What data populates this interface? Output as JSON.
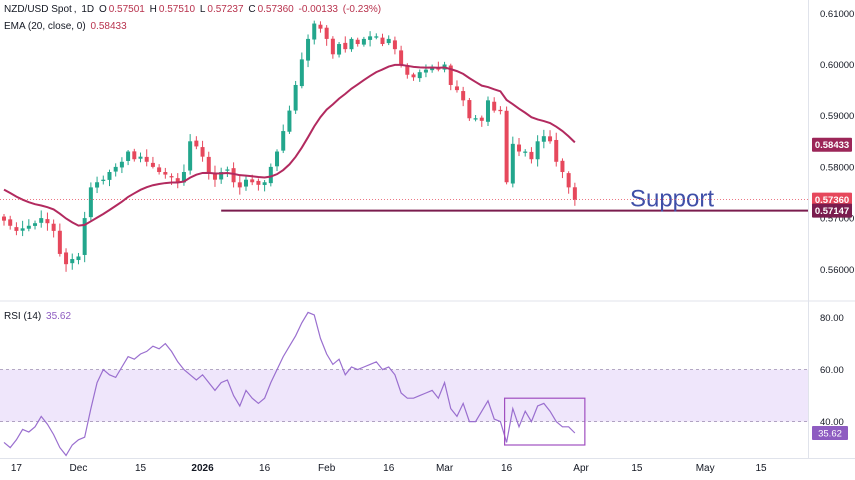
{
  "chart_data": {
    "type": "candlestick",
    "symbol": "NZD/USD Spot",
    "interval": "1D",
    "ohlc": {
      "open_label": "O",
      "open": "0.57501",
      "high_label": "H",
      "high": "0.57510",
      "low_label": "L",
      "low": "0.57237",
      "close_label": "C",
      "close": "0.57360",
      "change": "-0.00133",
      "change_pct": "(-0.23%)"
    },
    "ema": {
      "label": "EMA (20, close, 0)",
      "value": "0.58433",
      "color": "#b22a5f"
    },
    "rsi": {
      "label": "RSI (14)",
      "value": "35.62",
      "color": "#9a6fcf",
      "upper": 60,
      "lower": 40
    },
    "price_axis": {
      "ylim": [
        0.554,
        0.6126
      ],
      "ticks": [
        "0.61000",
        "0.60000",
        "0.59000",
        "0.58000",
        "0.57000",
        "0.56000"
      ]
    },
    "rsi_axis": {
      "ylim": [
        26,
        86
      ],
      "ticks": [
        "80.00",
        "60.00",
        "40.00"
      ]
    },
    "x_ticks": [
      {
        "label": "17",
        "bar": 2,
        "bold": false
      },
      {
        "label": "Dec",
        "bar": 12,
        "bold": false
      },
      {
        "label": "15",
        "bar": 22,
        "bold": false
      },
      {
        "label": "2026",
        "bar": 32,
        "bold": true
      },
      {
        "label": "16",
        "bar": 42,
        "bold": false
      },
      {
        "label": "Feb",
        "bar": 52,
        "bold": false
      },
      {
        "label": "16",
        "bar": 62,
        "bold": false
      },
      {
        "label": "Mar",
        "bar": 71,
        "bold": false
      },
      {
        "label": "16",
        "bar": 81,
        "bold": false
      },
      {
        "label": "Apr",
        "bar": 93,
        "bold": false
      },
      {
        "label": "15",
        "bar": 102,
        "bold": false
      },
      {
        "label": "May",
        "bar": 113,
        "bold": false
      },
      {
        "label": "15",
        "bar": 122,
        "bold": false
      }
    ],
    "support": {
      "label": "Support",
      "level": 0.57147,
      "value_label": "0.57147",
      "start_bar": 35
    },
    "price_labels": {
      "current": "0.57360",
      "ema": "0.58433"
    },
    "colors": {
      "up": "#22a68c",
      "down": "#e6485c",
      "support": "#7a1c4e",
      "rsi_band": "#efe6fb",
      "rsi_box": "#a04fc0"
    },
    "closes": [
      0.5695,
      0.5685,
      0.5675,
      0.568,
      0.5685,
      0.569,
      0.57,
      0.569,
      0.5675,
      0.563,
      0.561,
      0.562,
      0.5625,
      0.57,
      0.576,
      0.577,
      0.5775,
      0.579,
      0.58,
      0.581,
      0.583,
      0.5815,
      0.582,
      0.581,
      0.58,
      0.579,
      0.5785,
      0.578,
      0.577,
      0.579,
      0.585,
      0.584,
      0.582,
      0.579,
      0.5775,
      0.579,
      0.5795,
      0.577,
      0.576,
      0.5775,
      0.577,
      0.5765,
      0.577,
      0.58,
      0.583,
      0.587,
      0.591,
      0.596,
      0.601,
      0.605,
      0.608,
      0.607,
      0.605,
      0.602,
      0.604,
      0.603,
      0.605,
      0.604,
      0.605,
      0.6055,
      0.6055,
      0.604,
      0.605,
      0.603,
      0.6,
      0.598,
      0.5975,
      0.5985,
      0.599,
      0.5995,
      0.599,
      0.6,
      0.596,
      0.595,
      0.593,
      0.5895,
      0.5895,
      0.589,
      0.593,
      0.591,
      0.591,
      0.577,
      0.5845,
      0.583,
      0.583,
      0.5815,
      0.585,
      0.586,
      0.585,
      0.581,
      0.579,
      0.576,
      0.5736
    ],
    "rsi_values": [
      32,
      30,
      33,
      37,
      36,
      38,
      42,
      39,
      35,
      30,
      27,
      31,
      33,
      34,
      45,
      55,
      60,
      58,
      57,
      61,
      65,
      64,
      66,
      67,
      69,
      68,
      70,
      67,
      63,
      60,
      58,
      56,
      58,
      55,
      52,
      55,
      56,
      50,
      46,
      52,
      49,
      47,
      49,
      55,
      60,
      65,
      69,
      73,
      78,
      82,
      81,
      72,
      66,
      62,
      64,
      58,
      61,
      60,
      61,
      62,
      63,
      60,
      61,
      58,
      51,
      49,
      49,
      50,
      51,
      52,
      49,
      55,
      45,
      42,
      47,
      40,
      40,
      44,
      48,
      41,
      40,
      32,
      45,
      38,
      44,
      40,
      46,
      47,
      44,
      40,
      38,
      38,
      35.62
    ]
  }
}
